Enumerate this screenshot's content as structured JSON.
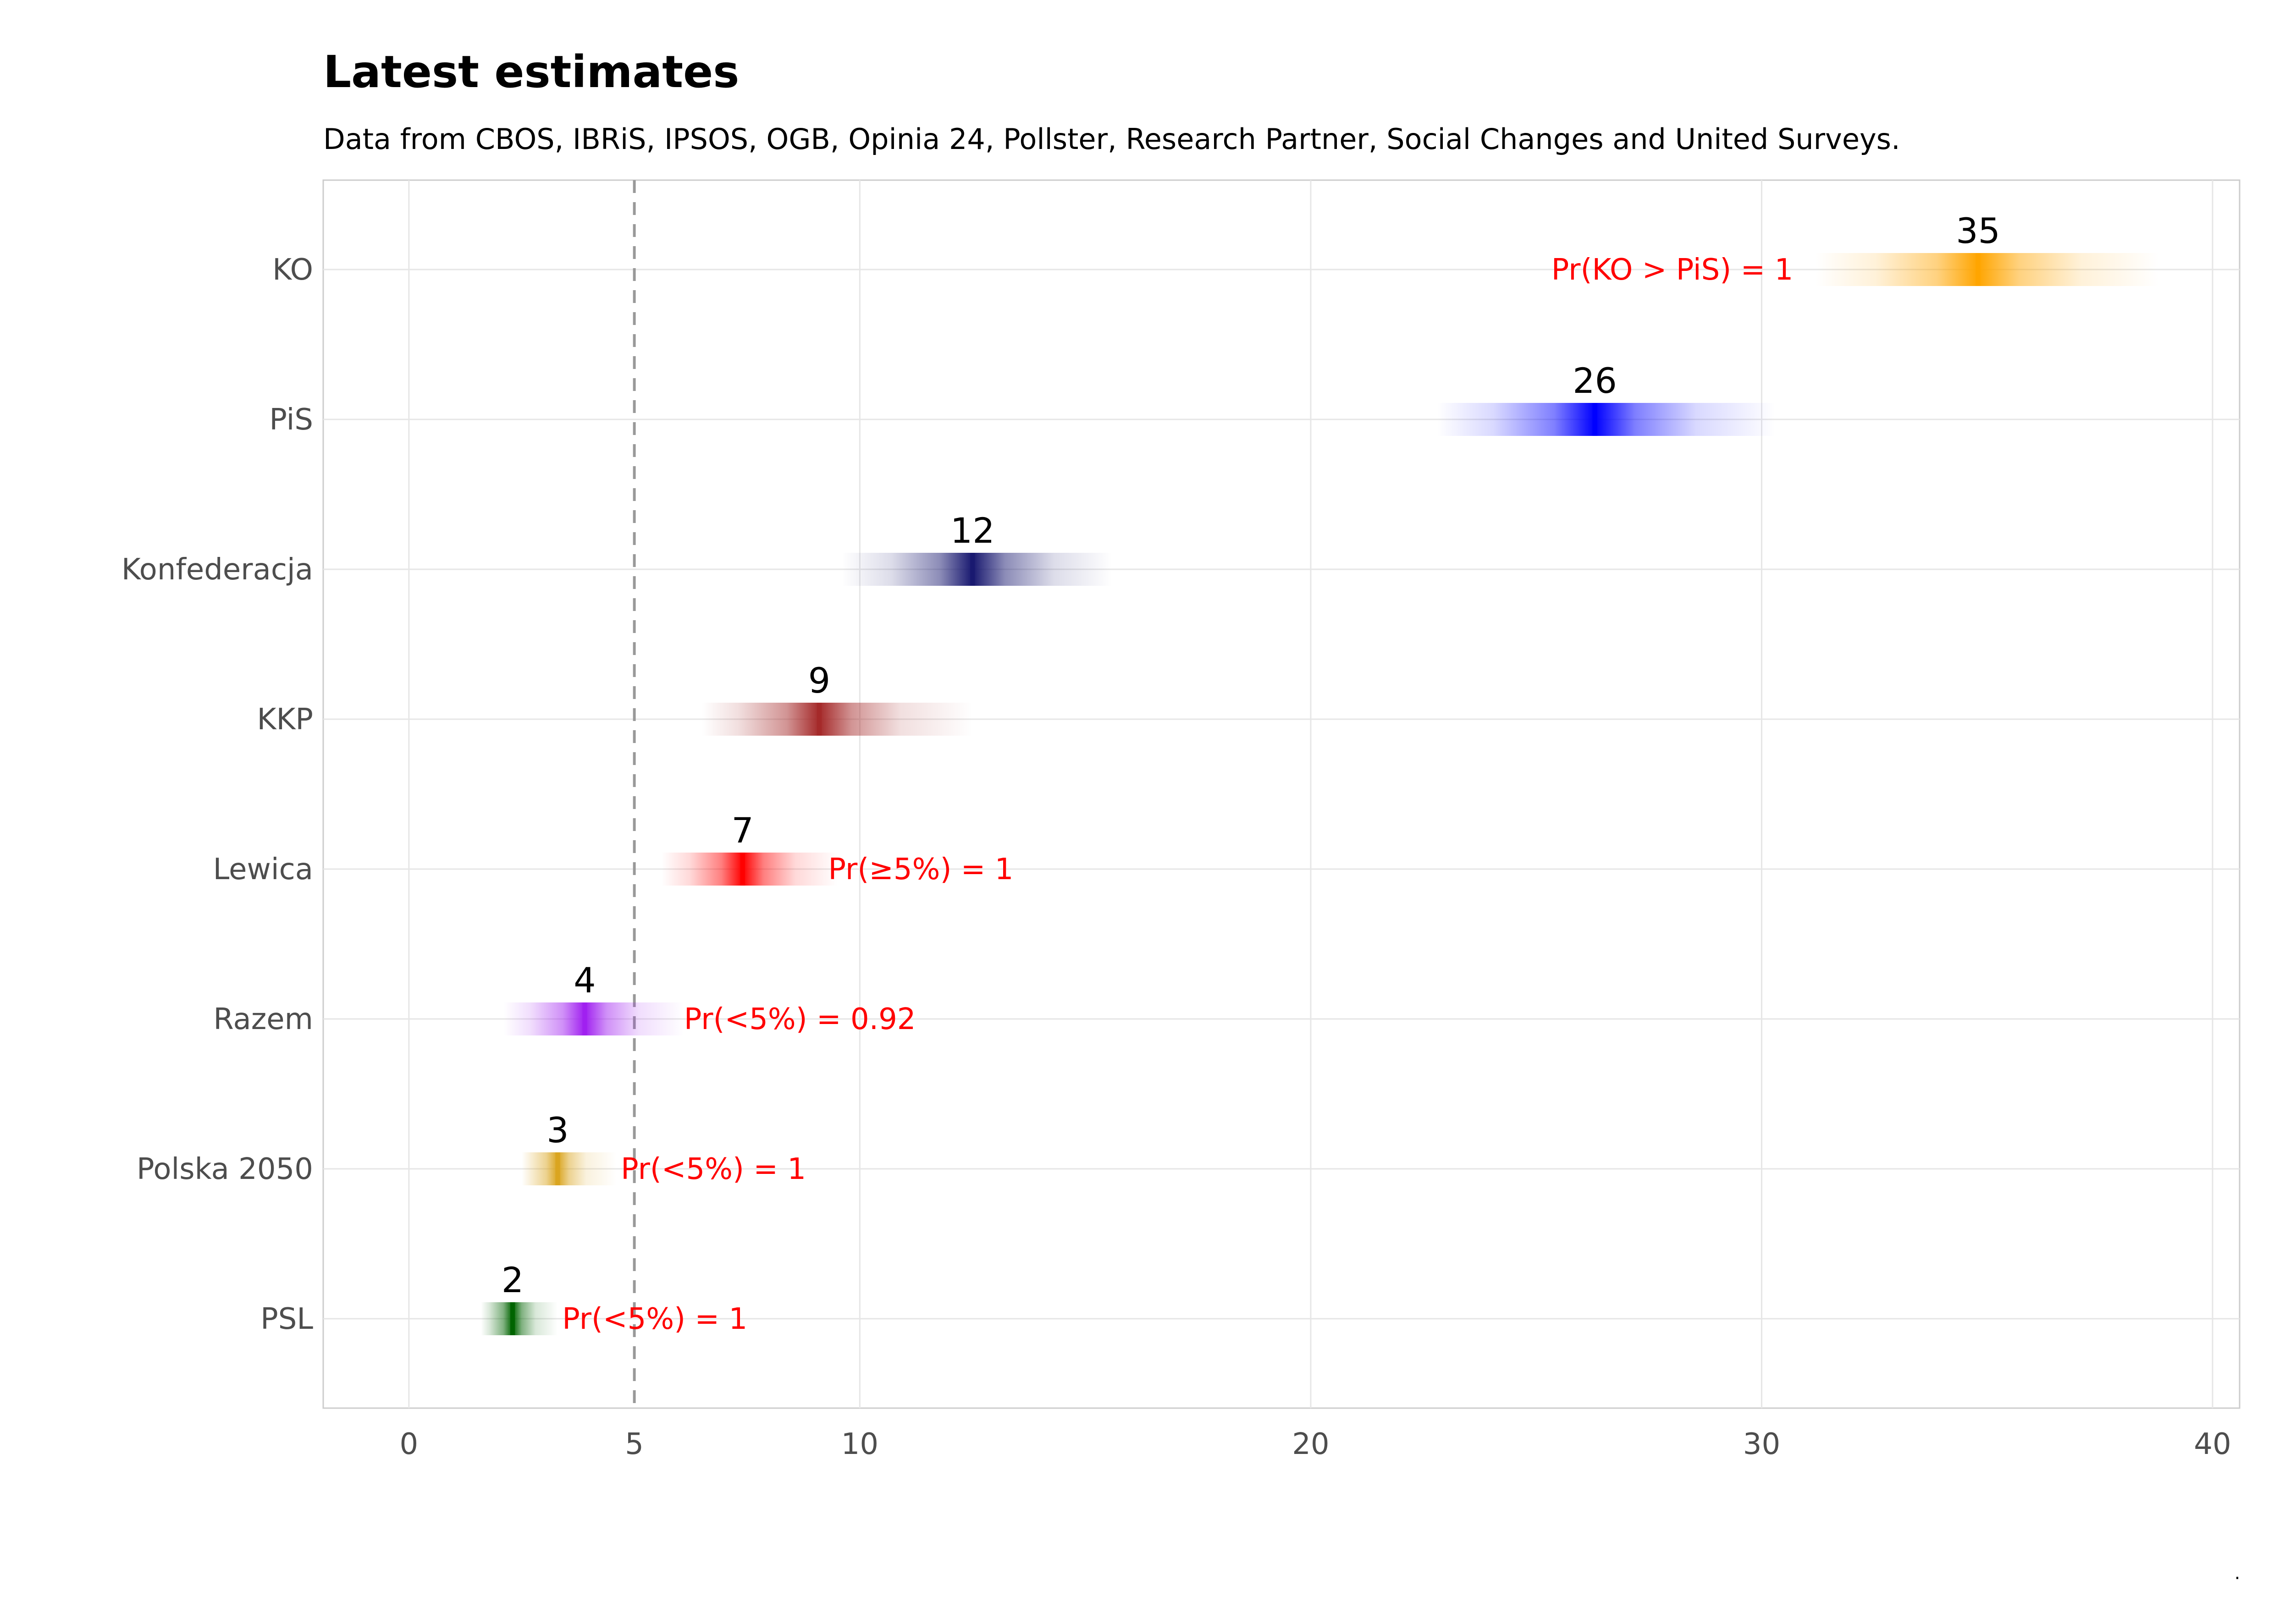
{
  "chart_data": {
    "type": "interval",
    "title": "Latest estimates",
    "subtitle": "Data from CBOS, IBRiS, IPSOS, OGB, Opinia 24, Pollster, Research Partner, Social Changes and United Surveys.",
    "xlabel": "",
    "ylabel": "",
    "xlim": [
      -1.9,
      40.6
    ],
    "xticks": [
      0,
      5,
      10,
      20,
      30,
      40
    ],
    "xtick_labels": [
      "0",
      "5",
      "10",
      "20",
      "30",
      "40"
    ],
    "threshold": 5,
    "grid": true,
    "parties": [
      {
        "name": "KO",
        "estimate": 34.8,
        "label": "35",
        "lo": 31.2,
        "hi": 38.8,
        "color": "#ffa500",
        "prob": "Pr(KO > PiS) =  1",
        "prob_x": 30.7,
        "prob_anchor": "end"
      },
      {
        "name": "PiS",
        "estimate": 26.3,
        "label": "26",
        "lo": 22.8,
        "hi": 30.3,
        "color": "#0000ff",
        "prob": "",
        "prob_x": null,
        "prob_anchor": "start"
      },
      {
        "name": "Konfederacja",
        "estimate": 12.5,
        "label": "12",
        "lo": 9.6,
        "hi": 15.6,
        "color": "#191970",
        "prob": "",
        "prob_x": null,
        "prob_anchor": "start"
      },
      {
        "name": "KKP",
        "estimate": 9.1,
        "label": "9",
        "lo": 6.5,
        "hi": 12.5,
        "color": "#a52a2a",
        "prob": "",
        "prob_x": null,
        "prob_anchor": "start"
      },
      {
        "name": "Lewica",
        "estimate": 7.4,
        "label": "7",
        "lo": 5.6,
        "hi": 9.5,
        "color": "#ff0000",
        "prob": "Pr(≥5%) =  1",
        "prob_x": 9.3,
        "prob_anchor": "start"
      },
      {
        "name": "Razem",
        "estimate": 3.9,
        "label": "4",
        "lo": 2.1,
        "hi": 6.1,
        "color": "#a020f0",
        "prob": "Pr(<5%) =  0.92",
        "prob_x": 6.1,
        "prob_anchor": "start"
      },
      {
        "name": "Polska 2050",
        "estimate": 3.3,
        "label": "3",
        "lo": 2.5,
        "hi": 4.6,
        "color": "#daa520",
        "prob": "Pr(<5%) =  1",
        "prob_x": 4.7,
        "prob_anchor": "start"
      },
      {
        "name": "PSL",
        "estimate": 2.3,
        "label": "2",
        "lo": 1.6,
        "hi": 3.3,
        "color": "#006400",
        "prob": "Pr(<5%) =  1",
        "prob_x": 3.4,
        "prob_anchor": "start"
      }
    ],
    "footnote": "."
  }
}
